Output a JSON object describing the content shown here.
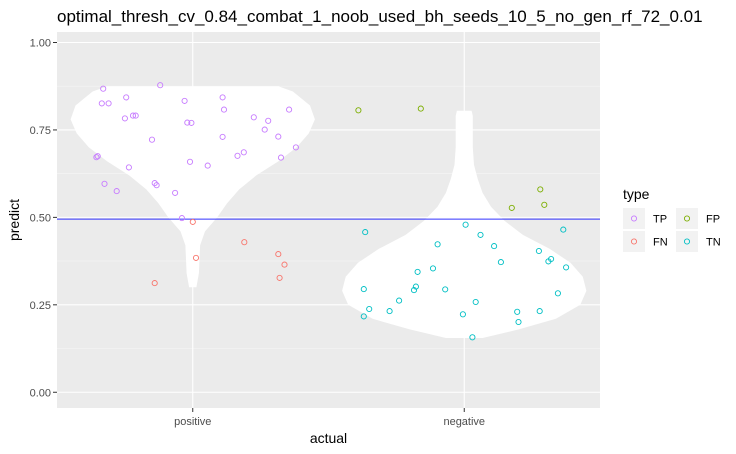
{
  "chart_data": {
    "type": "violin-jitter",
    "title": "optimal_thresh_cv_0.84_combat_1_noob_used_bh_seeds_10_5_no_gen_rf_72_0.01",
    "xlabel": "actual",
    "ylabel": "predict",
    "categories": [
      "positive",
      "negative"
    ],
    "ylim": [
      -0.045,
      1.03
    ],
    "yticks": [
      0.0,
      0.25,
      0.5,
      0.75,
      1.0
    ],
    "ytick_labels": [
      "0.00",
      "0.25",
      "0.50",
      "0.75",
      "1.00"
    ],
    "threshold": 0.495,
    "threshold_color": "#3333ff",
    "panel_background": "#ebebeb",
    "grid": true,
    "legend": {
      "title": "type",
      "position": "right",
      "entries": [
        {
          "label": "TP",
          "color": "#c77cff"
        },
        {
          "label": "FP",
          "color": "#7cae00"
        },
        {
          "label": "FN",
          "color": "#f8766d"
        },
        {
          "label": "TN",
          "color": "#00bfc4"
        }
      ]
    },
    "violins": [
      {
        "category": "positive",
        "profile": [
          [
            0.3,
            0.03
          ],
          [
            0.34,
            0.05
          ],
          [
            0.38,
            0.055
          ],
          [
            0.42,
            0.06
          ],
          [
            0.46,
            0.1
          ],
          [
            0.5,
            0.2
          ],
          [
            0.54,
            0.28
          ],
          [
            0.58,
            0.38
          ],
          [
            0.62,
            0.52
          ],
          [
            0.66,
            0.7
          ],
          [
            0.7,
            0.85
          ],
          [
            0.74,
            0.95
          ],
          [
            0.78,
            1.0
          ],
          [
            0.82,
            0.96
          ],
          [
            0.86,
            0.82
          ],
          [
            0.875,
            0.7
          ]
        ]
      },
      {
        "category": "negative",
        "profile": [
          [
            0.155,
            0.15
          ],
          [
            0.18,
            0.45
          ],
          [
            0.21,
            0.75
          ],
          [
            0.25,
            0.95
          ],
          [
            0.29,
            1.0
          ],
          [
            0.33,
            0.97
          ],
          [
            0.37,
            0.87
          ],
          [
            0.41,
            0.7
          ],
          [
            0.45,
            0.48
          ],
          [
            0.49,
            0.33
          ],
          [
            0.53,
            0.22
          ],
          [
            0.57,
            0.15
          ],
          [
            0.61,
            0.11
          ],
          [
            0.65,
            0.08
          ],
          [
            0.7,
            0.07
          ],
          [
            0.75,
            0.07
          ],
          [
            0.79,
            0.07
          ],
          [
            0.805,
            0.06
          ]
        ]
      }
    ],
    "points": [
      {
        "category": "positive",
        "x_offset": -0.355,
        "y": 0.672,
        "type": "TP"
      },
      {
        "category": "positive",
        "x_offset": -0.35,
        "y": 0.675,
        "type": "TP"
      },
      {
        "category": "positive",
        "x_offset": -0.325,
        "y": 0.596,
        "type": "TP"
      },
      {
        "category": "positive",
        "x_offset": -0.33,
        "y": 0.868,
        "type": "TP"
      },
      {
        "category": "positive",
        "x_offset": -0.335,
        "y": 0.826,
        "type": "TP"
      },
      {
        "category": "positive",
        "x_offset": -0.31,
        "y": 0.826,
        "type": "TP"
      },
      {
        "category": "positive",
        "x_offset": -0.28,
        "y": 0.575,
        "type": "TP"
      },
      {
        "category": "positive",
        "x_offset": -0.25,
        "y": 0.783,
        "type": "TP"
      },
      {
        "category": "positive",
        "x_offset": -0.245,
        "y": 0.843,
        "type": "TP"
      },
      {
        "category": "positive",
        "x_offset": -0.235,
        "y": 0.643,
        "type": "TP"
      },
      {
        "category": "positive",
        "x_offset": -0.22,
        "y": 0.791,
        "type": "TP"
      },
      {
        "category": "positive",
        "x_offset": -0.21,
        "y": 0.791,
        "type": "TP"
      },
      {
        "category": "positive",
        "x_offset": -0.15,
        "y": 0.722,
        "type": "TP"
      },
      {
        "category": "positive",
        "x_offset": -0.14,
        "y": 0.598,
        "type": "TP"
      },
      {
        "category": "positive",
        "x_offset": -0.133,
        "y": 0.592,
        "type": "TP"
      },
      {
        "category": "positive",
        "x_offset": -0.12,
        "y": 0.878,
        "type": "TP"
      },
      {
        "category": "positive",
        "x_offset": -0.065,
        "y": 0.57,
        "type": "TP"
      },
      {
        "category": "positive",
        "x_offset": -0.04,
        "y": 0.498,
        "type": "TP"
      },
      {
        "category": "positive",
        "x_offset": -0.03,
        "y": 0.833,
        "type": "TP"
      },
      {
        "category": "positive",
        "x_offset": -0.02,
        "y": 0.771,
        "type": "TP"
      },
      {
        "category": "positive",
        "x_offset": -0.005,
        "y": 0.77,
        "type": "TP"
      },
      {
        "category": "positive",
        "x_offset": -0.01,
        "y": 0.659,
        "type": "TP"
      },
      {
        "category": "positive",
        "x_offset": 0.055,
        "y": 0.648,
        "type": "TP"
      },
      {
        "category": "positive",
        "x_offset": 0.11,
        "y": 0.843,
        "type": "TP"
      },
      {
        "category": "positive",
        "x_offset": 0.115,
        "y": 0.808,
        "type": "TP"
      },
      {
        "category": "positive",
        "x_offset": 0.11,
        "y": 0.73,
        "type": "TP"
      },
      {
        "category": "positive",
        "x_offset": 0.165,
        "y": 0.676,
        "type": "TP"
      },
      {
        "category": "positive",
        "x_offset": 0.188,
        "y": 0.686,
        "type": "TP"
      },
      {
        "category": "positive",
        "x_offset": 0.225,
        "y": 0.786,
        "type": "TP"
      },
      {
        "category": "positive",
        "x_offset": 0.265,
        "y": 0.751,
        "type": "TP"
      },
      {
        "category": "positive",
        "x_offset": 0.278,
        "y": 0.776,
        "type": "TP"
      },
      {
        "category": "positive",
        "x_offset": 0.315,
        "y": 0.731,
        "type": "TP"
      },
      {
        "category": "positive",
        "x_offset": 0.325,
        "y": 0.671,
        "type": "TP"
      },
      {
        "category": "positive",
        "x_offset": 0.355,
        "y": 0.808,
        "type": "TP"
      },
      {
        "category": "positive",
        "x_offset": 0.38,
        "y": 0.7,
        "type": "TP"
      },
      {
        "category": "positive",
        "x_offset": 0.0,
        "y": 0.487,
        "type": "FN"
      },
      {
        "category": "positive",
        "x_offset": 0.012,
        "y": 0.384,
        "type": "FN"
      },
      {
        "category": "positive",
        "x_offset": -0.14,
        "y": 0.312,
        "type": "FN"
      },
      {
        "category": "positive",
        "x_offset": 0.19,
        "y": 0.429,
        "type": "FN"
      },
      {
        "category": "positive",
        "x_offset": 0.315,
        "y": 0.395,
        "type": "FN"
      },
      {
        "category": "positive",
        "x_offset": 0.338,
        "y": 0.365,
        "type": "FN"
      },
      {
        "category": "positive",
        "x_offset": 0.32,
        "y": 0.327,
        "type": "FN"
      },
      {
        "category": "negative",
        "x_offset": -0.39,
        "y": 0.806,
        "type": "FP"
      },
      {
        "category": "negative",
        "x_offset": -0.16,
        "y": 0.811,
        "type": "FP"
      },
      {
        "category": "negative",
        "x_offset": 0.175,
        "y": 0.527,
        "type": "FP"
      },
      {
        "category": "negative",
        "x_offset": 0.28,
        "y": 0.58,
        "type": "FP"
      },
      {
        "category": "negative",
        "x_offset": 0.295,
        "y": 0.536,
        "type": "FP"
      },
      {
        "category": "negative",
        "x_offset": -0.365,
        "y": 0.458,
        "type": "TN"
      },
      {
        "category": "negative",
        "x_offset": -0.37,
        "y": 0.295,
        "type": "TN"
      },
      {
        "category": "negative",
        "x_offset": -0.35,
        "y": 0.238,
        "type": "TN"
      },
      {
        "category": "negative",
        "x_offset": -0.37,
        "y": 0.217,
        "type": "TN"
      },
      {
        "category": "negative",
        "x_offset": -0.275,
        "y": 0.232,
        "type": "TN"
      },
      {
        "category": "negative",
        "x_offset": -0.24,
        "y": 0.262,
        "type": "TN"
      },
      {
        "category": "negative",
        "x_offset": -0.185,
        "y": 0.292,
        "type": "TN"
      },
      {
        "category": "negative",
        "x_offset": -0.178,
        "y": 0.302,
        "type": "TN"
      },
      {
        "category": "negative",
        "x_offset": -0.172,
        "y": 0.344,
        "type": "TN"
      },
      {
        "category": "negative",
        "x_offset": -0.115,
        "y": 0.354,
        "type": "TN"
      },
      {
        "category": "negative",
        "x_offset": -0.098,
        "y": 0.423,
        "type": "TN"
      },
      {
        "category": "negative",
        "x_offset": -0.07,
        "y": 0.294,
        "type": "TN"
      },
      {
        "category": "negative",
        "x_offset": 0.005,
        "y": 0.479,
        "type": "TN"
      },
      {
        "category": "negative",
        "x_offset": -0.005,
        "y": 0.223,
        "type": "TN"
      },
      {
        "category": "negative",
        "x_offset": 0.03,
        "y": 0.157,
        "type": "TN"
      },
      {
        "category": "negative",
        "x_offset": 0.042,
        "y": 0.258,
        "type": "TN"
      },
      {
        "category": "negative",
        "x_offset": 0.06,
        "y": 0.45,
        "type": "TN"
      },
      {
        "category": "negative",
        "x_offset": 0.11,
        "y": 0.418,
        "type": "TN"
      },
      {
        "category": "negative",
        "x_offset": 0.135,
        "y": 0.372,
        "type": "TN"
      },
      {
        "category": "negative",
        "x_offset": 0.195,
        "y": 0.23,
        "type": "TN"
      },
      {
        "category": "negative",
        "x_offset": 0.2,
        "y": 0.201,
        "type": "TN"
      },
      {
        "category": "negative",
        "x_offset": 0.275,
        "y": 0.404,
        "type": "TN"
      },
      {
        "category": "negative",
        "x_offset": 0.278,
        "y": 0.232,
        "type": "TN"
      },
      {
        "category": "negative",
        "x_offset": 0.31,
        "y": 0.374,
        "type": "TN"
      },
      {
        "category": "negative",
        "x_offset": 0.32,
        "y": 0.381,
        "type": "TN"
      },
      {
        "category": "negative",
        "x_offset": 0.345,
        "y": 0.283,
        "type": "TN"
      },
      {
        "category": "negative",
        "x_offset": 0.365,
        "y": 0.465,
        "type": "TN"
      },
      {
        "category": "negative",
        "x_offset": 0.375,
        "y": 0.357,
        "type": "TN"
      }
    ]
  }
}
